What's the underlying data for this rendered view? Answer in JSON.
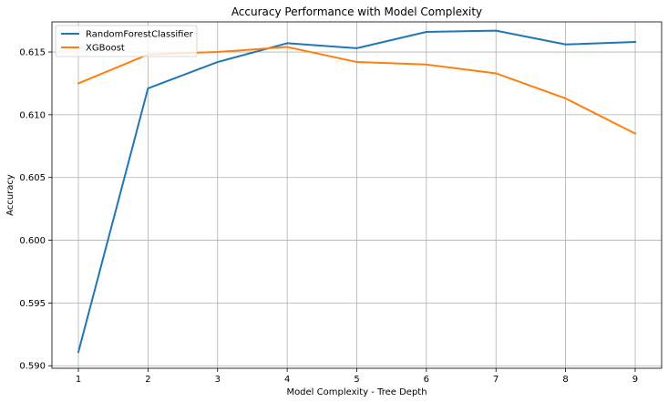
{
  "chart_data": {
    "type": "line",
    "title": "Accuracy Performance with Model Complexity",
    "xlabel": "Model Complexity - Tree Depth",
    "ylabel": "Accuracy",
    "x": [
      1,
      2,
      3,
      4,
      5,
      6,
      7,
      8,
      9
    ],
    "xlim": [
      0.62,
      9.38
    ],
    "ylim": [
      0.5898,
      0.6174
    ],
    "xticks": [
      "1",
      "2",
      "3",
      "4",
      "5",
      "6",
      "7",
      "8",
      "9"
    ],
    "yticks": [
      "0.590",
      "0.595",
      "0.600",
      "0.605",
      "0.610",
      "0.615"
    ],
    "grid": true,
    "legend_position": "top-left",
    "series": [
      {
        "name": "RandomForestClassifier",
        "color": "#1f77b4",
        "values": [
          0.5911,
          0.6121,
          0.6142,
          0.6157,
          0.6153,
          0.6166,
          0.6167,
          0.6156,
          0.6158
        ]
      },
      {
        "name": "XGBoost",
        "color": "#ff7f0e",
        "values": [
          0.6125,
          0.6148,
          0.615,
          0.6154,
          0.6142,
          0.614,
          0.6133,
          0.6113,
          0.6085
        ]
      }
    ]
  }
}
